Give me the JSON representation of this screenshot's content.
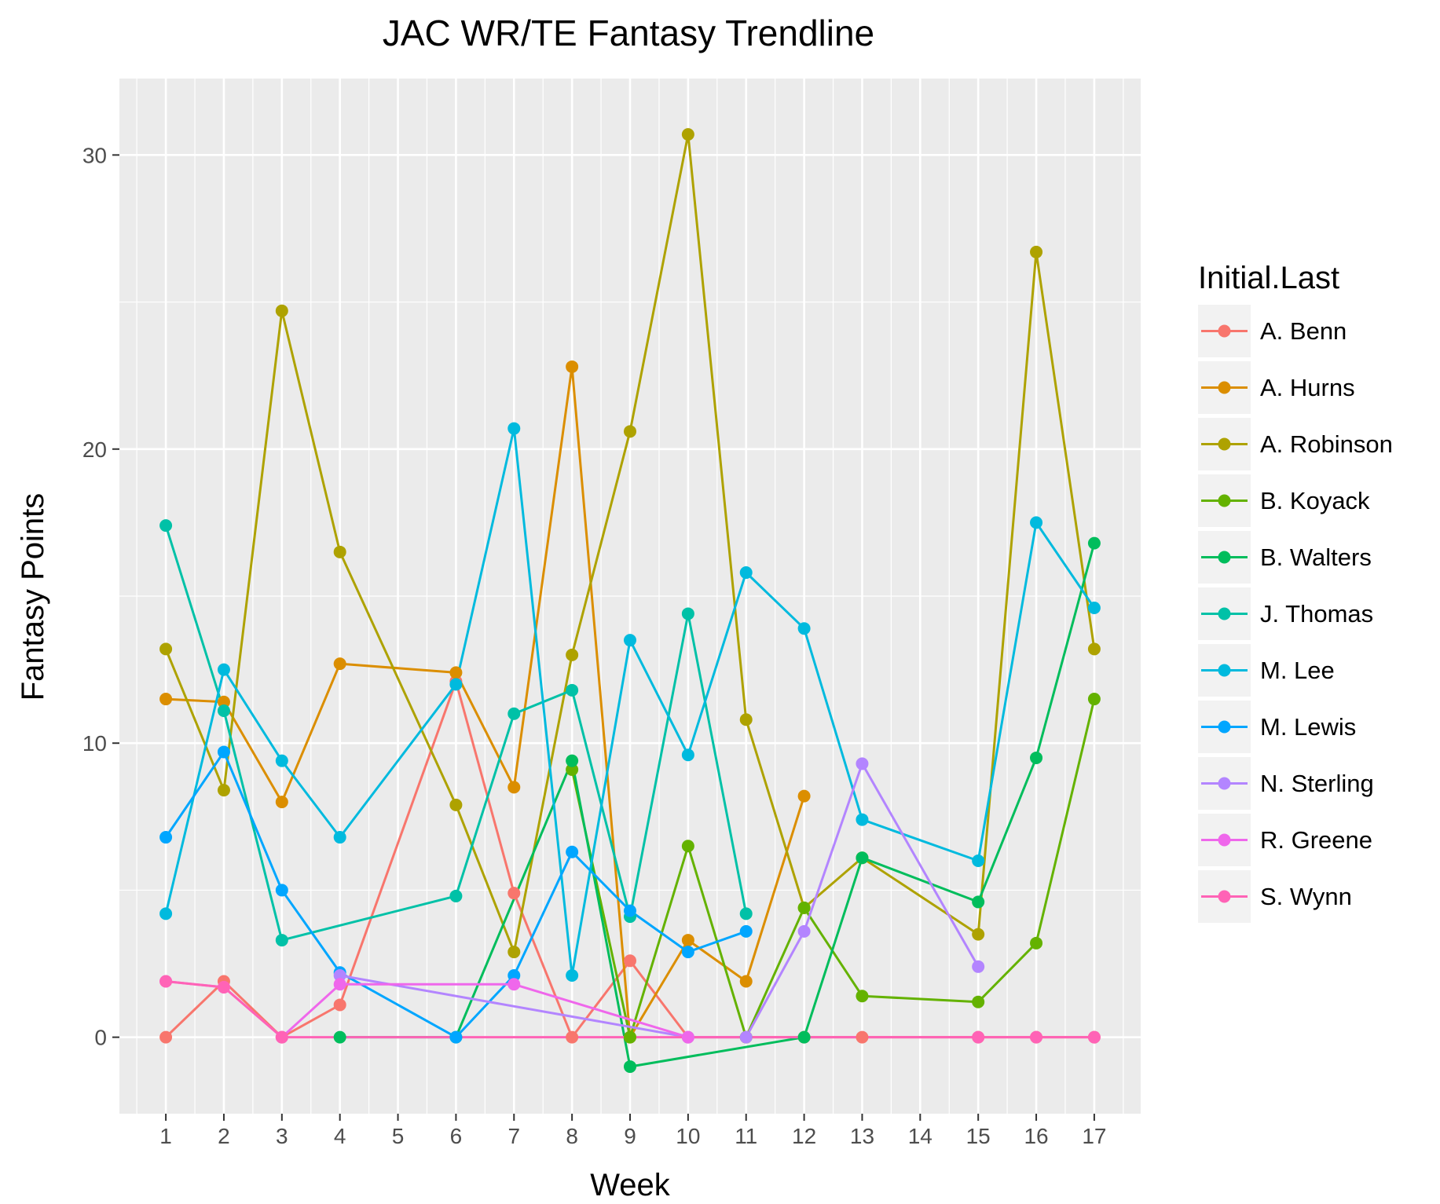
{
  "chart_data": {
    "type": "line",
    "title": "JAC WR/TE Fantasy Trendline",
    "xlabel": "Week",
    "ylabel": "Fantasy Points",
    "x_ticks": [
      "1",
      "2",
      "3",
      "4",
      "5",
      "6",
      "7",
      "8",
      "9",
      "10",
      "11",
      "12",
      "13",
      "14",
      "15",
      "16",
      "17"
    ],
    "y_ticks": [
      "0",
      "10",
      "20",
      "30"
    ],
    "xlim": [
      0.2,
      17.8
    ],
    "ylim": [
      -2.6,
      32.6
    ],
    "grid": true,
    "background": "#ebebeb",
    "legend": {
      "title": "Initial.Last",
      "position": "right"
    },
    "series": [
      {
        "name": "A. Benn",
        "color": "#F8766D",
        "points": [
          [
            1,
            0
          ],
          [
            2,
            1.9
          ],
          [
            3,
            0
          ],
          [
            4,
            1.1
          ],
          [
            6,
            12.1
          ],
          [
            7,
            4.9
          ],
          [
            8,
            0
          ],
          [
            9,
            2.6
          ],
          [
            10,
            0
          ],
          [
            11,
            0
          ],
          [
            12,
            0
          ],
          [
            13,
            0
          ],
          [
            15,
            0
          ],
          [
            16,
            0
          ],
          [
            17,
            0
          ]
        ]
      },
      {
        "name": "A. Hurns",
        "color": "#DB8E00",
        "points": [
          [
            1,
            11.5
          ],
          [
            2,
            11.4
          ],
          [
            3,
            8.0
          ],
          [
            4,
            12.7
          ],
          [
            6,
            12.4
          ],
          [
            7,
            8.5
          ],
          [
            8,
            22.8
          ],
          [
            9,
            0
          ],
          [
            10,
            3.3
          ],
          [
            11,
            1.9
          ],
          [
            12,
            8.2
          ]
        ]
      },
      {
        "name": "A. Robinson",
        "color": "#AEA200",
        "points": [
          [
            1,
            13.2
          ],
          [
            2,
            8.4
          ],
          [
            3,
            24.7
          ],
          [
            4,
            16.5
          ],
          [
            6,
            7.9
          ],
          [
            7,
            2.9
          ],
          [
            8,
            13.0
          ],
          [
            9,
            20.6
          ],
          [
            10,
            30.7
          ],
          [
            11,
            10.8
          ],
          [
            12,
            4.4
          ],
          [
            13,
            6.1
          ],
          [
            15,
            3.5
          ],
          [
            16,
            26.7
          ],
          [
            17,
            13.2
          ]
        ]
      },
      {
        "name": "B. Koyack",
        "color": "#64B200",
        "points": [
          [
            8,
            9.1
          ],
          [
            9,
            0
          ],
          [
            10,
            6.5
          ],
          [
            11,
            0
          ],
          [
            12,
            4.4
          ],
          [
            13,
            1.4
          ],
          [
            15,
            1.2
          ],
          [
            16,
            3.2
          ],
          [
            17,
            11.5
          ]
        ]
      },
      {
        "name": "B. Walters",
        "color": "#00BD5C",
        "points": [
          [
            4,
            0
          ],
          [
            6,
            0
          ],
          [
            8,
            9.4
          ],
          [
            9,
            -1.0
          ],
          [
            12,
            0
          ],
          [
            13,
            6.1
          ],
          [
            15,
            4.6
          ],
          [
            16,
            9.5
          ],
          [
            17,
            16.8
          ]
        ]
      },
      {
        "name": "J. Thomas",
        "color": "#00C1A7",
        "points": [
          [
            1,
            17.4
          ],
          [
            2,
            11.1
          ],
          [
            3,
            3.3
          ],
          [
            6,
            4.8
          ],
          [
            7,
            11.0
          ],
          [
            8,
            11.8
          ],
          [
            9,
            4.1
          ],
          [
            10,
            14.4
          ],
          [
            11,
            4.2
          ]
        ]
      },
      {
        "name": "M. Lee",
        "color": "#00BADE",
        "points": [
          [
            1,
            4.2
          ],
          [
            2,
            12.5
          ],
          [
            3,
            9.4
          ],
          [
            4,
            6.8
          ],
          [
            6,
            12.0
          ],
          [
            7,
            20.7
          ],
          [
            8,
            2.1
          ],
          [
            9,
            13.5
          ],
          [
            10,
            9.6
          ],
          [
            11,
            15.8
          ],
          [
            12,
            13.9
          ],
          [
            13,
            7.4
          ],
          [
            15,
            6.0
          ],
          [
            16,
            17.5
          ],
          [
            17,
            14.6
          ]
        ]
      },
      {
        "name": "M. Lewis",
        "color": "#00A6FF",
        "points": [
          [
            1,
            6.8
          ],
          [
            2,
            9.7
          ],
          [
            3,
            5.0
          ],
          [
            4,
            2.2
          ],
          [
            6,
            0
          ],
          [
            7,
            2.1
          ],
          [
            8,
            6.3
          ],
          [
            9,
            4.3
          ],
          [
            10,
            2.9
          ],
          [
            11,
            3.6
          ]
        ]
      },
      {
        "name": "N. Sterling",
        "color": "#B385FF",
        "points": [
          [
            4,
            2.1
          ],
          [
            10,
            0
          ],
          [
            11,
            0
          ],
          [
            12,
            3.6
          ],
          [
            13,
            9.3
          ],
          [
            15,
            2.4
          ]
        ]
      },
      {
        "name": "R. Greene",
        "color": "#EF67EB",
        "points": [
          [
            1,
            1.9
          ],
          [
            2,
            1.7
          ],
          [
            3,
            0
          ],
          [
            4,
            1.8
          ],
          [
            7,
            1.8
          ],
          [
            10,
            0
          ]
        ]
      },
      {
        "name": "S. Wynn",
        "color": "#FF63B6",
        "points": [
          [
            1,
            1.9
          ],
          [
            2,
            1.7
          ],
          [
            3,
            0
          ],
          [
            15,
            0
          ],
          [
            16,
            0
          ],
          [
            17,
            0
          ]
        ]
      }
    ]
  }
}
